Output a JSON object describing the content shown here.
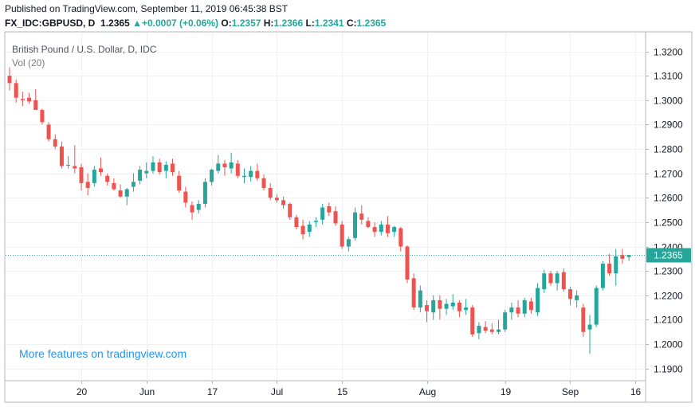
{
  "header": {
    "published": "Published on TradingView.com, September 11, 2019 06:45:38 BST",
    "symbol": "FX_IDC:GBPUSD, D",
    "last": "1.2365",
    "change_arrow": "▲",
    "change": "+0.0007 (+0.06%)",
    "o_label": "O:",
    "o_value": "1.2357",
    "h_label": "H:",
    "h_value": "1.2366",
    "l_label": "L:",
    "l_value": "1.2341",
    "c_label": "C:",
    "c_value": "1.2365"
  },
  "legend": {
    "title": "British Pound / U.S. Dollar, D, IDC",
    "volume": "Vol (20)"
  },
  "footer": {
    "more_link": "More features on tradingview.com"
  },
  "colors": {
    "up": "#26a69a",
    "down": "#ef5350",
    "grid": "#eef0f3",
    "price_line": "#26a69a",
    "price_badge": "#26a69a",
    "link": "#2196f3"
  },
  "chart_data": {
    "type": "candlestick",
    "ylim": [
      1.185,
      1.328
    ],
    "yticks": [
      1.32,
      1.31,
      1.3,
      1.29,
      1.28,
      1.27,
      1.26,
      1.25,
      1.24,
      1.23,
      1.22,
      1.21,
      1.2,
      1.19
    ],
    "ytick_labels": [
      "1.3200",
      "1.3100",
      "1.3000",
      "1.2900",
      "1.2800",
      "1.2700",
      "1.2600",
      "1.2500",
      "1.2400",
      "1.2300",
      "1.2200",
      "1.2100",
      "1.2000",
      "1.1900"
    ],
    "xticks": [
      {
        "label": "20",
        "index": 11
      },
      {
        "label": "Jun",
        "index": 21
      },
      {
        "label": "17",
        "index": 31
      },
      {
        "label": "Jul",
        "index": 41
      },
      {
        "label": "15",
        "index": 51
      },
      {
        "label": "Aug",
        "index": 64
      },
      {
        "label": "19",
        "index": 76
      },
      {
        "label": "Sep",
        "index": 86
      },
      {
        "label": "16",
        "index": 96
      }
    ],
    "last_price": 1.2365,
    "last_price_label": "1.2365",
    "grid": true,
    "candles": [
      {
        "o": 1.31,
        "h": 1.3135,
        "l": 1.304,
        "c": 1.307
      },
      {
        "o": 1.307,
        "h": 1.3085,
        "l": 1.299,
        "c": 1.301
      },
      {
        "o": 1.3005,
        "h": 1.3035,
        "l": 1.2975,
        "c": 1.3
      },
      {
        "o": 1.301,
        "h": 1.303,
        "l": 1.2985,
        "c": 1.2995
      },
      {
        "o": 1.3,
        "h": 1.3045,
        "l": 1.296,
        "c": 1.296
      },
      {
        "o": 1.296,
        "h": 1.2965,
        "l": 1.29,
        "c": 1.291
      },
      {
        "o": 1.29,
        "h": 1.291,
        "l": 1.283,
        "c": 1.284
      },
      {
        "o": 1.284,
        "h": 1.286,
        "l": 1.28,
        "c": 1.281
      },
      {
        "o": 1.281,
        "h": 1.283,
        "l": 1.272,
        "c": 1.273
      },
      {
        "o": 1.2735,
        "h": 1.277,
        "l": 1.272,
        "c": 1.2735
      },
      {
        "o": 1.273,
        "h": 1.2815,
        "l": 1.27,
        "c": 1.272
      },
      {
        "o": 1.2725,
        "h": 1.274,
        "l": 1.263,
        "c": 1.266
      },
      {
        "o": 1.2665,
        "h": 1.27,
        "l": 1.261,
        "c": 1.264
      },
      {
        "o": 1.266,
        "h": 1.273,
        "l": 1.2645,
        "c": 1.2715
      },
      {
        "o": 1.272,
        "h": 1.2765,
        "l": 1.269,
        "c": 1.2705
      },
      {
        "o": 1.269,
        "h": 1.27,
        "l": 1.265,
        "c": 1.2665
      },
      {
        "o": 1.266,
        "h": 1.268,
        "l": 1.263,
        "c": 1.2635
      },
      {
        "o": 1.263,
        "h": 1.2655,
        "l": 1.26,
        "c": 1.2605
      },
      {
        "o": 1.2605,
        "h": 1.264,
        "l": 1.257,
        "c": 1.2635
      },
      {
        "o": 1.2645,
        "h": 1.27,
        "l": 1.2625,
        "c": 1.2665
      },
      {
        "o": 1.267,
        "h": 1.273,
        "l": 1.2655,
        "c": 1.2715
      },
      {
        "o": 1.27,
        "h": 1.2745,
        "l": 1.268,
        "c": 1.271
      },
      {
        "o": 1.271,
        "h": 1.277,
        "l": 1.27,
        "c": 1.2745
      },
      {
        "o": 1.2745,
        "h": 1.276,
        "l": 1.2695,
        "c": 1.2705
      },
      {
        "o": 1.271,
        "h": 1.275,
        "l": 1.268,
        "c": 1.2735
      },
      {
        "o": 1.274,
        "h": 1.276,
        "l": 1.269,
        "c": 1.2705
      },
      {
        "o": 1.269,
        "h": 1.271,
        "l": 1.262,
        "c": 1.263
      },
      {
        "o": 1.2625,
        "h": 1.2645,
        "l": 1.256,
        "c": 1.258
      },
      {
        "o": 1.257,
        "h": 1.2585,
        "l": 1.251,
        "c": 1.254
      },
      {
        "o": 1.255,
        "h": 1.259,
        "l": 1.2535,
        "c": 1.2575
      },
      {
        "o": 1.2575,
        "h": 1.268,
        "l": 1.256,
        "c": 1.2665
      },
      {
        "o": 1.2665,
        "h": 1.272,
        "l": 1.265,
        "c": 1.2715
      },
      {
        "o": 1.271,
        "h": 1.2775,
        "l": 1.27,
        "c": 1.274
      },
      {
        "o": 1.274,
        "h": 1.2755,
        "l": 1.269,
        "c": 1.2725
      },
      {
        "o": 1.272,
        "h": 1.2785,
        "l": 1.27,
        "c": 1.2745
      },
      {
        "o": 1.274,
        "h": 1.2755,
        "l": 1.268,
        "c": 1.269
      },
      {
        "o": 1.2685,
        "h": 1.272,
        "l": 1.266,
        "c": 1.269
      },
      {
        "o": 1.2685,
        "h": 1.273,
        "l": 1.2665,
        "c": 1.271
      },
      {
        "o": 1.271,
        "h": 1.274,
        "l": 1.267,
        "c": 1.268
      },
      {
        "o": 1.268,
        "h": 1.2695,
        "l": 1.263,
        "c": 1.264
      },
      {
        "o": 1.264,
        "h": 1.266,
        "l": 1.259,
        "c": 1.26
      },
      {
        "o": 1.26,
        "h": 1.2615,
        "l": 1.258,
        "c": 1.259
      },
      {
        "o": 1.259,
        "h": 1.2605,
        "l": 1.2555,
        "c": 1.257
      },
      {
        "o": 1.2575,
        "h": 1.258,
        "l": 1.251,
        "c": 1.252
      },
      {
        "o": 1.252,
        "h": 1.253,
        "l": 1.247,
        "c": 1.248
      },
      {
        "o": 1.2485,
        "h": 1.251,
        "l": 1.243,
        "c": 1.245
      },
      {
        "o": 1.246,
        "h": 1.2505,
        "l": 1.244,
        "c": 1.249
      },
      {
        "o": 1.25,
        "h": 1.252,
        "l": 1.248,
        "c": 1.2505
      },
      {
        "o": 1.251,
        "h": 1.2575,
        "l": 1.249,
        "c": 1.256
      },
      {
        "o": 1.2565,
        "h": 1.258,
        "l": 1.2525,
        "c": 1.254
      },
      {
        "o": 1.2545,
        "h": 1.2565,
        "l": 1.2485,
        "c": 1.2495
      },
      {
        "o": 1.249,
        "h": 1.2505,
        "l": 1.239,
        "c": 1.24
      },
      {
        "o": 1.24,
        "h": 1.244,
        "l": 1.238,
        "c": 1.243
      },
      {
        "o": 1.2435,
        "h": 1.256,
        "l": 1.2425,
        "c": 1.254
      },
      {
        "o": 1.2535,
        "h": 1.257,
        "l": 1.249,
        "c": 1.251
      },
      {
        "o": 1.2505,
        "h": 1.252,
        "l": 1.2475,
        "c": 1.248
      },
      {
        "o": 1.248,
        "h": 1.25,
        "l": 1.244,
        "c": 1.246
      },
      {
        "o": 1.246,
        "h": 1.2505,
        "l": 1.2445,
        "c": 1.249
      },
      {
        "o": 1.249,
        "h": 1.2525,
        "l": 1.244,
        "c": 1.2455
      },
      {
        "o": 1.246,
        "h": 1.2485,
        "l": 1.244,
        "c": 1.248
      },
      {
        "o": 1.2475,
        "h": 1.248,
        "l": 1.238,
        "c": 1.24
      },
      {
        "o": 1.24,
        "h": 1.2405,
        "l": 1.225,
        "c": 1.2265
      },
      {
        "o": 1.227,
        "h": 1.229,
        "l": 1.214,
        "c": 1.215
      },
      {
        "o": 1.215,
        "h": 1.224,
        "l": 1.213,
        "c": 1.222
      },
      {
        "o": 1.216,
        "h": 1.218,
        "l": 1.209,
        "c": 1.2135
      },
      {
        "o": 1.213,
        "h": 1.22,
        "l": 1.21,
        "c": 1.218
      },
      {
        "o": 1.218,
        "h": 1.22,
        "l": 1.21,
        "c": 1.2145
      },
      {
        "o": 1.2145,
        "h": 1.2185,
        "l": 1.212,
        "c": 1.2165
      },
      {
        "o": 1.2155,
        "h": 1.2205,
        "l": 1.214,
        "c": 1.217
      },
      {
        "o": 1.217,
        "h": 1.218,
        "l": 1.211,
        "c": 1.2135
      },
      {
        "o": 1.214,
        "h": 1.2185,
        "l": 1.212,
        "c": 1.215
      },
      {
        "o": 1.215,
        "h": 1.216,
        "l": 1.203,
        "c": 1.204
      },
      {
        "o": 1.2045,
        "h": 1.209,
        "l": 1.202,
        "c": 1.2075
      },
      {
        "o": 1.207,
        "h": 1.2095,
        "l": 1.2045,
        "c": 1.2055
      },
      {
        "o": 1.206,
        "h": 1.2085,
        "l": 1.204,
        "c": 1.205
      },
      {
        "o": 1.205,
        "h": 1.21,
        "l": 1.204,
        "c": 1.206
      },
      {
        "o": 1.206,
        "h": 1.214,
        "l": 1.205,
        "c": 1.213
      },
      {
        "o": 1.213,
        "h": 1.217,
        "l": 1.21,
        "c": 1.215
      },
      {
        "o": 1.215,
        "h": 1.218,
        "l": 1.211,
        "c": 1.2125
      },
      {
        "o": 1.2125,
        "h": 1.219,
        "l": 1.211,
        "c": 1.218
      },
      {
        "o": 1.2175,
        "h": 1.219,
        "l": 1.2125,
        "c": 1.214
      },
      {
        "o": 1.213,
        "h": 1.225,
        "l": 1.2115,
        "c": 1.223
      },
      {
        "o": 1.2225,
        "h": 1.2305,
        "l": 1.221,
        "c": 1.229
      },
      {
        "o": 1.229,
        "h": 1.23,
        "l": 1.224,
        "c": 1.225
      },
      {
        "o": 1.225,
        "h": 1.23,
        "l": 1.222,
        "c": 1.229
      },
      {
        "o": 1.2295,
        "h": 1.231,
        "l": 1.2215,
        "c": 1.2225
      },
      {
        "o": 1.2225,
        "h": 1.2235,
        "l": 1.216,
        "c": 1.2185
      },
      {
        "o": 1.218,
        "h": 1.222,
        "l": 1.215,
        "c": 1.22
      },
      {
        "o": 1.215,
        "h": 1.2165,
        "l": 1.203,
        "c": 1.205
      },
      {
        "o": 1.206,
        "h": 1.212,
        "l": 1.196,
        "c": 1.208
      },
      {
        "o": 1.208,
        "h": 1.224,
        "l": 1.207,
        "c": 1.223
      },
      {
        "o": 1.223,
        "h": 1.234,
        "l": 1.222,
        "c": 1.233
      },
      {
        "o": 1.233,
        "h": 1.237,
        "l": 1.228,
        "c": 1.229
      },
      {
        "o": 1.229,
        "h": 1.239,
        "l": 1.224,
        "c": 1.236
      },
      {
        "o": 1.2365,
        "h": 1.239,
        "l": 1.233,
        "c": 1.235
      },
      {
        "o": 1.2357,
        "h": 1.2366,
        "l": 1.2341,
        "c": 1.2365
      }
    ]
  }
}
